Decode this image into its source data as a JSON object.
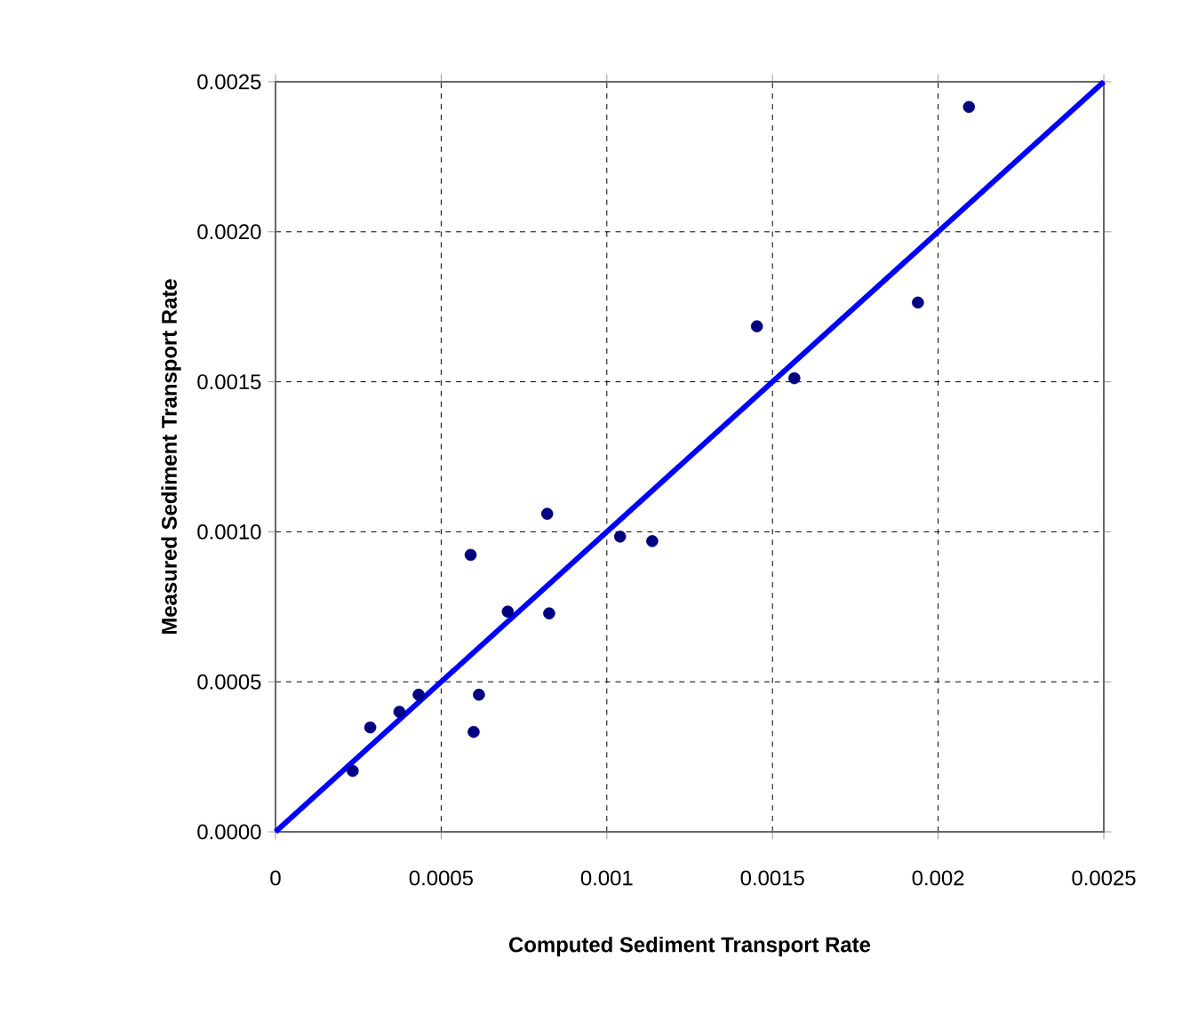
{
  "chart_data": {
    "type": "scatter",
    "xlabel": "Computed Sediment Transport Rate",
    "ylabel": "Measured Sediment Transport Rate",
    "xlim": [
      0,
      0.0025
    ],
    "ylim": [
      0,
      0.0025
    ],
    "xticks": [
      {
        "value": 0,
        "label": "0"
      },
      {
        "value": 0.0005,
        "label": "0.0005"
      },
      {
        "value": 0.001,
        "label": "0.001"
      },
      {
        "value": 0.0015,
        "label": "0.0015"
      },
      {
        "value": 0.002,
        "label": "0.002"
      },
      {
        "value": 0.0025,
        "label": "0.0025"
      }
    ],
    "yticks": [
      {
        "value": 0,
        "label": "0.0000"
      },
      {
        "value": 0.0005,
        "label": "0.0005"
      },
      {
        "value": 0.001,
        "label": "0.0010"
      },
      {
        "value": 0.0015,
        "label": "0.0015"
      },
      {
        "value": 0.002,
        "label": "0.0020"
      },
      {
        "value": 0.0025,
        "label": "0.0025"
      }
    ],
    "grid": true,
    "marker": "circle",
    "series": [
      {
        "color": "#000080",
        "x": [
          0.000233,
          0.000286,
          0.000374,
          0.000432,
          0.000598,
          0.000614,
          0.000589,
          0.000701,
          0.000826,
          0.00082,
          0.00104,
          0.001137,
          0.001453,
          0.001566,
          0.001939,
          0.002093
        ],
        "values": [
          0.000203,
          0.000348,
          0.0004,
          0.000457,
          0.000333,
          0.000457,
          0.000923,
          0.000734,
          0.000728,
          0.00106,
          0.000984,
          0.000969,
          0.001685,
          0.001512,
          0.001764,
          0.002416
        ]
      },
      {
        "type": "line",
        "color": "#0000ff",
        "x": [
          0,
          0.0025
        ],
        "values": [
          0,
          0.0025
        ],
        "marker": "none"
      }
    ]
  }
}
